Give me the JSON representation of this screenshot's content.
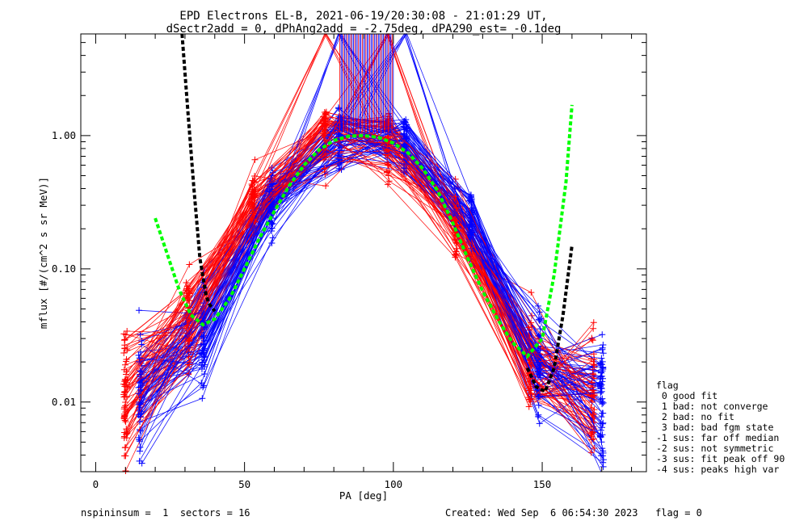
{
  "chart_data": {
    "type": "line",
    "title": [
      "EPD Electrons EL-B, 2021-06-19/20:30:08 - 21:01:29 UT,",
      "dSectr2add = 0, dPhAng2add = -2.75deg, dPA290_est=  -0.1deg"
    ],
    "xlabel": "PA [deg]",
    "ylabel": "mflux [#/(cm^2 s sr MeV)]",
    "xlim": [
      -5,
      185
    ],
    "ylim": [
      0.003,
      5.8
    ],
    "yscale": "log",
    "xticks": [
      0,
      50,
      100,
      150
    ],
    "yticks": [
      0.01,
      0.1,
      1.0
    ],
    "ytick_labels": [
      "0.01",
      "0.10",
      "1.00"
    ],
    "grid": false,
    "pa_bins_red": [
      10,
      31,
      53,
      77,
      98,
      121,
      146,
      167
    ],
    "pa_bins_blue": [
      15,
      36,
      59,
      82,
      104,
      126,
      149,
      170
    ],
    "median_profile": [
      0.011,
      0.035,
      0.3,
      0.87,
      0.82,
      0.22,
      0.019,
      0.011
    ],
    "series": [
      {
        "color": "#ff0000",
        "x": [
          10,
          31,
          53,
          77,
          98,
          121,
          146,
          167
        ],
        "values": [
          0.012,
          0.03,
          0.26,
          0.93,
          0.88,
          0.23,
          0.015,
          0.008
        ]
      },
      {
        "color": "#0000ff",
        "x": [
          15,
          36,
          59,
          82,
          104,
          126,
          149,
          170
        ],
        "values": [
          0.013,
          0.04,
          0.43,
          1.02,
          0.74,
          0.18,
          0.016,
          0.012
        ]
      }
    ],
    "fit_green": {
      "color": "#00ff00",
      "x": [
        20,
        24,
        28,
        32,
        36,
        40,
        45,
        50,
        55,
        60,
        65,
        70,
        75,
        80,
        85,
        90,
        95,
        100,
        105,
        110,
        115,
        120,
        125,
        130,
        135,
        140,
        145,
        150,
        154,
        158,
        160
      ],
      "values": [
        0.24,
        0.13,
        0.07,
        0.045,
        0.038,
        0.042,
        0.06,
        0.1,
        0.17,
        0.27,
        0.42,
        0.6,
        0.78,
        0.92,
        0.99,
        1.0,
        0.97,
        0.88,
        0.74,
        0.56,
        0.38,
        0.22,
        0.12,
        0.068,
        0.042,
        0.028,
        0.022,
        0.03,
        0.09,
        0.45,
        1.7
      ]
    },
    "fit_black": {
      "color": "#000000",
      "x": [
        29,
        31,
        33,
        35,
        37,
        38,
        40
      ],
      "values": [
        5.8,
        1.5,
        0.4,
        0.12,
        0.065,
        0.055,
        0.048
      ],
      "x2": [
        145,
        148,
        151,
        154,
        157,
        160
      ],
      "values2": [
        0.018,
        0.013,
        0.012,
        0.018,
        0.045,
        0.15
      ]
    },
    "legend": {
      "position": "right-outside",
      "title": "flag",
      "entries": [
        " 0 good fit",
        " 1 bad: not converge",
        " 2 bad: no fit",
        " 3 bad: bad fgm state",
        "-1 sus: far off median",
        "-2 sus: not symmetric",
        "-3 sus: fit peak off 90",
        "-4 sus: peaks high var"
      ]
    }
  },
  "footer": {
    "left": "nspininsum =  1  sectors = 16",
    "right": "Created: Wed Sep  6 06:54:30 2023   flag = 0"
  }
}
